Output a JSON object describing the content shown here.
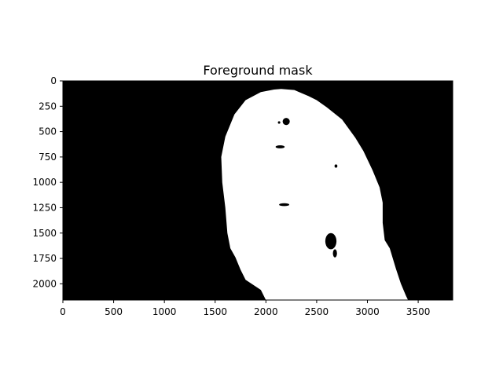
{
  "chart_data": {
    "type": "heatmap",
    "title": "Foreground mask",
    "xlabel": "",
    "ylabel": "",
    "xlim": [
      0,
      3840
    ],
    "ylim": [
      2160,
      0
    ],
    "x_ticks": [
      0,
      500,
      1000,
      1500,
      2000,
      2500,
      3000,
      3500
    ],
    "y_ticks": [
      0,
      250,
      500,
      750,
      1000,
      1250,
      1500,
      1750,
      2000
    ],
    "grid": false,
    "colors": {
      "background": "#000000",
      "foreground": "#ffffff",
      "axis": "#000000"
    },
    "foreground_outline": [
      [
        2150,
        80
      ],
      [
        2280,
        90
      ],
      [
        2350,
        120
      ],
      [
        2420,
        150
      ],
      [
        2500,
        190
      ],
      [
        2600,
        260
      ],
      [
        2750,
        380
      ],
      [
        2880,
        560
      ],
      [
        2960,
        690
      ],
      [
        3050,
        880
      ],
      [
        3120,
        1050
      ],
      [
        3150,
        1200
      ],
      [
        3150,
        1400
      ],
      [
        3170,
        1570
      ],
      [
        3220,
        1650
      ],
      [
        3280,
        1850
      ],
      [
        3330,
        2000
      ],
      [
        3380,
        2120
      ],
      [
        3400,
        2160
      ],
      [
        2000,
        2160
      ],
      [
        1950,
        2060
      ],
      [
        1800,
        1960
      ],
      [
        1750,
        1860
      ],
      [
        1700,
        1740
      ],
      [
        1650,
        1650
      ],
      [
        1620,
        1500
      ],
      [
        1600,
        1250
      ],
      [
        1570,
        1000
      ],
      [
        1560,
        750
      ],
      [
        1600,
        550
      ],
      [
        1690,
        330
      ],
      [
        1800,
        190
      ],
      [
        1950,
        110
      ],
      [
        2080,
        85
      ]
    ],
    "background_holes": [
      {
        "cx": 2200,
        "cy": 400,
        "rx": 35,
        "ry": 35
      },
      {
        "cx": 2130,
        "cy": 410,
        "rx": 12,
        "ry": 12
      },
      {
        "cx": 2140,
        "cy": 650,
        "rx": 45,
        "ry": 15
      },
      {
        "cx": 2690,
        "cy": 840,
        "rx": 14,
        "ry": 16
      },
      {
        "cx": 2180,
        "cy": 1220,
        "rx": 50,
        "ry": 14
      },
      {
        "cx": 2640,
        "cy": 1580,
        "rx": 55,
        "ry": 80
      },
      {
        "cx": 2680,
        "cy": 1700,
        "rx": 20,
        "ry": 40
      }
    ]
  }
}
